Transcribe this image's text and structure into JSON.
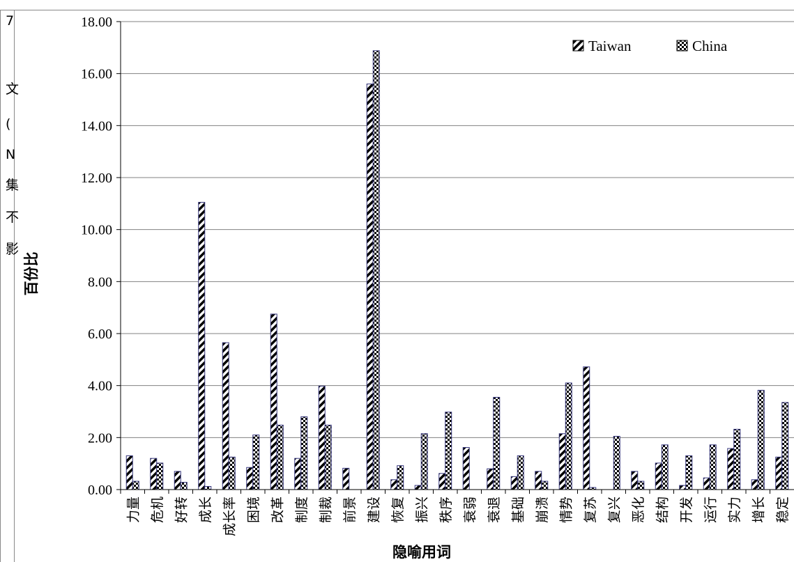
{
  "chart_data": {
    "type": "bar",
    "title": "",
    "xlabel": "隐喻用词",
    "ylabel": "百份比",
    "ylim": [
      0,
      18
    ],
    "yticks": [
      "0.00",
      "2.00",
      "4.00",
      "6.00",
      "8.00",
      "10.00",
      "12.00",
      "14.00",
      "16.00",
      "18.00"
    ],
    "grid": true,
    "legend_position": "top-right",
    "categories": [
      "力量",
      "危机",
      "好转",
      "成长",
      "成长率",
      "困境",
      "改革",
      "制度",
      "制裁",
      "前景",
      "建设",
      "恢复",
      "振兴",
      "秩序",
      "衰弱",
      "衰退",
      "基础",
      "崩溃",
      "情势",
      "复苏",
      "复兴",
      "恶化",
      "结构",
      "开发",
      "运行",
      "实力",
      "增长",
      "稳定"
    ],
    "series": [
      {
        "name": "Taiwan",
        "pattern": "diagonal-stripes",
        "color": "#000000",
        "values": [
          1.3,
          1.2,
          0.7,
          11.05,
          5.65,
          0.85,
          6.75,
          1.2,
          3.98,
          0.82,
          15.6,
          0.38,
          0.16,
          0.62,
          1.62,
          0.8,
          0.5,
          0.7,
          2.15,
          4.72,
          0.0,
          0.7,
          1.02,
          0.16,
          0.45,
          1.58,
          0.38,
          1.25
        ]
      },
      {
        "name": "China",
        "pattern": "checkerboard",
        "color": "#000000",
        "values": [
          0.32,
          1.02,
          0.28,
          0.12,
          1.25,
          2.1,
          2.48,
          2.8,
          2.48,
          0.0,
          16.88,
          0.92,
          2.15,
          2.98,
          0.0,
          3.55,
          1.3,
          0.32,
          4.1,
          0.08,
          2.05,
          0.32,
          1.72,
          1.3,
          1.72,
          2.32,
          3.82,
          3.35
        ]
      }
    ]
  },
  "background_fragments": [
    "7",
    "文",
    "(",
    "N",
    "集",
    "不",
    "影"
  ]
}
